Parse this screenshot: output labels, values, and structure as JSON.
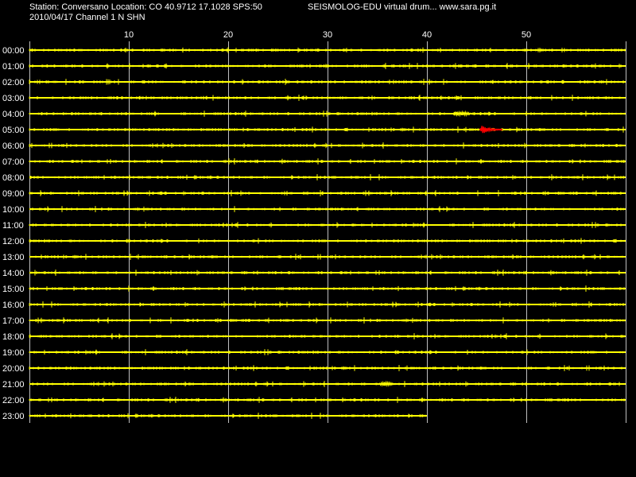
{
  "header": {
    "station_line": "Station: Conversano Location: CO 40.9712 17.1028 SPS:50",
    "date_line": "2010/04/17  Channel 1 N SHN",
    "brand_line": "SEISMOLOG-EDU virtual drum... www.sara.pg.it"
  },
  "colors": {
    "background": "#000000",
    "trace": "#ffff00",
    "event": "#ff0000",
    "grid": "#ffffff",
    "text": "#ffffff"
  },
  "chart_data": {
    "type": "line",
    "title": "",
    "xlabel": "",
    "ylabel": "",
    "xlim": [
      0,
      60
    ],
    "x_ticks": [
      10,
      20,
      30,
      40,
      50
    ],
    "x_tick_labels": [
      "10",
      "20",
      "30",
      "40",
      "50"
    ],
    "grid": true,
    "hours": [
      "00:00",
      "01:00",
      "02:00",
      "03:00",
      "04:00",
      "05:00",
      "06:00",
      "07:00",
      "08:00",
      "09:00",
      "10:00",
      "11:00",
      "12:00",
      "13:00",
      "14:00",
      "15:00",
      "16:00",
      "17:00",
      "18:00",
      "19:00",
      "20:00",
      "21:00",
      "22:00",
      "23:00"
    ],
    "trace_end_minute": [
      60,
      60,
      60,
      60,
      60,
      60,
      60,
      60,
      60,
      60,
      60,
      60,
      60,
      60,
      60,
      60,
      60,
      60,
      60,
      60,
      60,
      60,
      60,
      40
    ],
    "events": [
      {
        "hour": "05:00",
        "start_minute": 45.3,
        "end_minute": 47.6,
        "color": "red"
      },
      {
        "hour": "21:00",
        "start_minute": 35.0,
        "end_minute": 36.8,
        "color": "yellow"
      },
      {
        "hour": "04:00",
        "start_minute": 42.5,
        "end_minute": 44.5,
        "color": "yellow"
      }
    ]
  }
}
